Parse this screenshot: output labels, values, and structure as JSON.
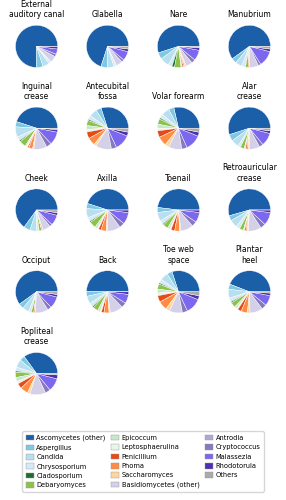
{
  "chart_data": [
    {
      "type": "pie",
      "title": "External\nauditory canal",
      "legend": "lower center",
      "categories": [
        "Ascomycetes (other)",
        "Aspergillus",
        "Candida",
        "Chrysosporium",
        "Cladosporium",
        "Debaryomyces",
        "Epicoccum",
        "Leptosphaerulina",
        "Penicillium",
        "Phoma",
        "Saccharomyces",
        "Basidiomycetes (other)",
        "Antrodia",
        "Cryptococcus",
        "Malassezia",
        "Rhodotorula",
        "Others"
      ],
      "colors": [
        "#1a5fa8",
        "#7ec8e3",
        "#b8dff0",
        "#d4eaf7",
        "#1a6e2e",
        "#8bc34a",
        "#c8e6c9",
        "#e8f5e9",
        "#e64a19",
        "#ff8c42",
        "#ffd699",
        "#d4d0e8",
        "#b0a8d4",
        "#8878c0",
        "#7b68ee",
        "#5030b0",
        "#aaaaaa"
      ],
      "values": [
        0.75,
        0.05,
        0.05,
        0.02,
        0.0,
        0.0,
        0.0,
        0.0,
        0.0,
        0.0,
        0.0,
        0.05,
        0.0,
        0.02,
        0.04,
        0.02,
        0.0
      ]
    },
    {
      "type": "pie",
      "title": "Glabella",
      "categories": [
        "Ascomycetes (other)",
        "Aspergillus",
        "Candida",
        "Chrysosporium",
        "Cladosporium",
        "Debaryomyces",
        "Epicoccum",
        "Leptosphaerulina",
        "Penicillium",
        "Phoma",
        "Saccharomyces",
        "Basidiomycetes (other)",
        "Antrodia",
        "Cryptococcus",
        "Malassezia",
        "Rhodotorula",
        "Others"
      ],
      "colors": [
        "#1a5fa8",
        "#7ec8e3",
        "#b8dff0",
        "#d4eaf7",
        "#1a6e2e",
        "#8bc34a",
        "#c8e6c9",
        "#e8f5e9",
        "#e64a19",
        "#ff8c42",
        "#ffd699",
        "#d4d0e8",
        "#b0a8d4",
        "#8878c0",
        "#7b68ee",
        "#5030b0",
        "#aaaaaa"
      ],
      "values": [
        0.7,
        0.05,
        0.05,
        0.02,
        0.0,
        0.0,
        0.0,
        0.0,
        0.0,
        0.0,
        0.0,
        0.05,
        0.0,
        0.02,
        0.07,
        0.02,
        0.02
      ]
    },
    {
      "type": "pie",
      "title": "Nare",
      "categories": [
        "Ascomycetes (other)",
        "Aspergillus",
        "Candida",
        "Chrysosporium",
        "Cladosporium",
        "Debaryomyces",
        "Epicoccum",
        "Leptosphaerulina",
        "Penicillium",
        "Phoma",
        "Saccharomyces",
        "Basidiomycetes (other)",
        "Antrodia",
        "Cryptococcus",
        "Malassezia",
        "Rhodotorula",
        "Others"
      ],
      "colors": [
        "#1a5fa8",
        "#7ec8e3",
        "#b8dff0",
        "#d4eaf7",
        "#1a6e2e",
        "#8bc34a",
        "#c8e6c9",
        "#e8f5e9",
        "#e64a19",
        "#ff8c42",
        "#ffd699",
        "#d4d0e8",
        "#b0a8d4",
        "#8878c0",
        "#7b68ee",
        "#5030b0",
        "#aaaaaa"
      ],
      "values": [
        0.55,
        0.05,
        0.07,
        0.03,
        0.02,
        0.05,
        0.01,
        0.0,
        0.01,
        0.01,
        0.01,
        0.05,
        0.0,
        0.03,
        0.08,
        0.02,
        0.01
      ]
    },
    {
      "type": "pie",
      "title": "Manubrium",
      "categories": [
        "Ascomycetes (other)",
        "Aspergillus",
        "Candida",
        "Chrysosporium",
        "Cladosporium",
        "Debaryomyces",
        "Epicoccum",
        "Leptosphaerulina",
        "Penicillium",
        "Phoma",
        "Saccharomyces",
        "Basidiomycetes (other)",
        "Antrodia",
        "Cryptococcus",
        "Malassezia",
        "Rhodotorula",
        "Others"
      ],
      "colors": [
        "#1a5fa8",
        "#7ec8e3",
        "#b8dff0",
        "#d4eaf7",
        "#1a6e2e",
        "#8bc34a",
        "#c8e6c9",
        "#e8f5e9",
        "#e64a19",
        "#ff8c42",
        "#ffd699",
        "#d4d0e8",
        "#b0a8d4",
        "#8878c0",
        "#7b68ee",
        "#5030b0",
        "#aaaaaa"
      ],
      "values": [
        0.6,
        0.04,
        0.05,
        0.03,
        0.0,
        0.02,
        0.0,
        0.0,
        0.0,
        0.01,
        0.0,
        0.07,
        0.0,
        0.02,
        0.12,
        0.02,
        0.02
      ]
    },
    {
      "type": "pie",
      "title": "Inguinal\ncrease",
      "categories": [
        "Ascomycetes (other)",
        "Aspergillus",
        "Candida",
        "Chrysosporium",
        "Cladosporium",
        "Debaryomyces",
        "Epicoccum",
        "Leptosphaerulina",
        "Penicillium",
        "Phoma",
        "Saccharomyces",
        "Basidiomycetes (other)",
        "Antrodia",
        "Cryptococcus",
        "Malassezia",
        "Rhodotorula",
        "Others"
      ],
      "colors": [
        "#1a5fa8",
        "#7ec8e3",
        "#b8dff0",
        "#d4eaf7",
        "#1a6e2e",
        "#8bc34a",
        "#c8e6c9",
        "#e8f5e9",
        "#e64a19",
        "#ff8c42",
        "#ffd699",
        "#d4d0e8",
        "#b0a8d4",
        "#8878c0",
        "#7b68ee",
        "#5030b0",
        "#aaaaaa"
      ],
      "values": [
        0.45,
        0.04,
        0.08,
        0.03,
        0.01,
        0.05,
        0.01,
        0.01,
        0.01,
        0.03,
        0.01,
        0.1,
        0.0,
        0.04,
        0.1,
        0.02,
        0.01
      ]
    },
    {
      "type": "pie",
      "title": "Antecubital\nfossa",
      "categories": [
        "Ascomycetes (other)",
        "Aspergillus",
        "Candida",
        "Chrysosporium",
        "Cladosporium",
        "Debaryomyces",
        "Epicoccum",
        "Leptosphaerulina",
        "Penicillium",
        "Phoma",
        "Saccharomyces",
        "Basidiomycetes (other)",
        "Antrodia",
        "Cryptococcus",
        "Malassezia",
        "Rhodotorula",
        "Others"
      ],
      "colors": [
        "#1a5fa8",
        "#7ec8e3",
        "#b8dff0",
        "#d4eaf7",
        "#1a6e2e",
        "#8bc34a",
        "#c8e6c9",
        "#e8f5e9",
        "#e64a19",
        "#ff8c42",
        "#ffd699",
        "#d4d0e8",
        "#b0a8d4",
        "#8878c0",
        "#7b68ee",
        "#5030b0",
        "#aaaaaa"
      ],
      "values": [
        0.3,
        0.04,
        0.06,
        0.03,
        0.01,
        0.04,
        0.03,
        0.02,
        0.05,
        0.06,
        0.02,
        0.12,
        0.0,
        0.04,
        0.12,
        0.03,
        0.03
      ]
    },
    {
      "type": "pie",
      "title": "Volar forearm",
      "categories": [
        "Ascomycetes (other)",
        "Aspergillus",
        "Candida",
        "Chrysosporium",
        "Cladosporium",
        "Debaryomyces",
        "Epicoccum",
        "Leptosphaerulina",
        "Penicillium",
        "Phoma",
        "Saccharomyces",
        "Basidiomycetes (other)",
        "Antrodia",
        "Cryptococcus",
        "Malassezia",
        "Rhodotorula",
        "Others"
      ],
      "colors": [
        "#1a5fa8",
        "#7ec8e3",
        "#b8dff0",
        "#d4eaf7",
        "#1a6e2e",
        "#8bc34a",
        "#c8e6c9",
        "#e8f5e9",
        "#e64a19",
        "#ff8c42",
        "#ffd699",
        "#d4d0e8",
        "#b0a8d4",
        "#8878c0",
        "#7b68ee",
        "#5030b0",
        "#aaaaaa"
      ],
      "values": [
        0.28,
        0.04,
        0.06,
        0.03,
        0.01,
        0.04,
        0.03,
        0.02,
        0.05,
        0.07,
        0.03,
        0.1,
        0.0,
        0.04,
        0.12,
        0.03,
        0.03
      ]
    },
    {
      "type": "pie",
      "title": "Alar\ncrease",
      "categories": [
        "Ascomycetes (other)",
        "Aspergillus",
        "Candida",
        "Chrysosporium",
        "Cladosporium",
        "Debaryomyces",
        "Epicoccum",
        "Leptosphaerulina",
        "Penicillium",
        "Phoma",
        "Saccharomyces",
        "Basidiomycetes (other)",
        "Antrodia",
        "Cryptococcus",
        "Malassezia",
        "Rhodotorula",
        "Others"
      ],
      "colors": [
        "#1a5fa8",
        "#7ec8e3",
        "#b8dff0",
        "#d4eaf7",
        "#1a6e2e",
        "#8bc34a",
        "#c8e6c9",
        "#e8f5e9",
        "#e64a19",
        "#ff8c42",
        "#ffd699",
        "#d4d0e8",
        "#b0a8d4",
        "#8878c0",
        "#7b68ee",
        "#5030b0",
        "#aaaaaa"
      ],
      "values": [
        0.55,
        0.05,
        0.06,
        0.02,
        0.0,
        0.03,
        0.01,
        0.0,
        0.01,
        0.01,
        0.01,
        0.08,
        0.0,
        0.03,
        0.1,
        0.02,
        0.02
      ]
    },
    {
      "type": "pie",
      "title": "Cheek",
      "categories": [
        "Ascomycetes (other)",
        "Aspergillus",
        "Candida",
        "Chrysosporium",
        "Cladosporium",
        "Debaryomyces",
        "Epicoccum",
        "Leptosphaerulina",
        "Penicillium",
        "Phoma",
        "Saccharomyces",
        "Basidiomycetes (other)",
        "Antrodia",
        "Cryptococcus",
        "Malassezia",
        "Rhodotorula",
        "Others"
      ],
      "colors": [
        "#1a5fa8",
        "#7ec8e3",
        "#b8dff0",
        "#d4eaf7",
        "#1a6e2e",
        "#8bc34a",
        "#c8e6c9",
        "#e8f5e9",
        "#e64a19",
        "#ff8c42",
        "#ffd699",
        "#d4d0e8",
        "#b0a8d4",
        "#8878c0",
        "#7b68ee",
        "#5030b0",
        "#aaaaaa"
      ],
      "values": [
        0.65,
        0.05,
        0.05,
        0.02,
        0.0,
        0.02,
        0.0,
        0.0,
        0.0,
        0.01,
        0.0,
        0.06,
        0.0,
        0.02,
        0.08,
        0.02,
        0.02
      ]
    },
    {
      "type": "pie",
      "title": "Axilla",
      "categories": [
        "Ascomycetes (other)",
        "Aspergillus",
        "Candida",
        "Chrysosporium",
        "Cladosporium",
        "Debaryomyces",
        "Epicoccum",
        "Leptosphaerulina",
        "Penicillium",
        "Phoma",
        "Saccharomyces",
        "Basidiomycetes (other)",
        "Antrodia",
        "Cryptococcus",
        "Malassezia",
        "Rhodotorula",
        "Others"
      ],
      "colors": [
        "#1a5fa8",
        "#7ec8e3",
        "#b8dff0",
        "#d4eaf7",
        "#1a6e2e",
        "#8bc34a",
        "#c8e6c9",
        "#e8f5e9",
        "#e64a19",
        "#ff8c42",
        "#ffd699",
        "#d4d0e8",
        "#b0a8d4",
        "#8878c0",
        "#7b68ee",
        "#5030b0",
        "#aaaaaa"
      ],
      "values": [
        0.45,
        0.04,
        0.07,
        0.03,
        0.01,
        0.05,
        0.02,
        0.01,
        0.02,
        0.04,
        0.01,
        0.1,
        0.0,
        0.04,
        0.09,
        0.02,
        0.0
      ]
    },
    {
      "type": "pie",
      "title": "Toenail",
      "categories": [
        "Ascomycetes (other)",
        "Aspergillus",
        "Candida",
        "Chrysosporium",
        "Cladosporium",
        "Debaryomyces",
        "Epicoccum",
        "Leptosphaerulina",
        "Penicillium",
        "Phoma",
        "Saccharomyces",
        "Basidiomycetes (other)",
        "Antrodia",
        "Cryptococcus",
        "Malassezia",
        "Rhodotorula",
        "Others"
      ],
      "colors": [
        "#1a5fa8",
        "#7ec8e3",
        "#b8dff0",
        "#d4eaf7",
        "#1a6e2e",
        "#8bc34a",
        "#c8e6c9",
        "#e8f5e9",
        "#e64a19",
        "#ff8c42",
        "#ffd699",
        "#d4d0e8",
        "#b0a8d4",
        "#8878c0",
        "#7b68ee",
        "#5030b0",
        "#aaaaaa"
      ],
      "values": [
        0.5,
        0.04,
        0.07,
        0.03,
        0.01,
        0.04,
        0.02,
        0.01,
        0.03,
        0.04,
        0.01,
        0.1,
        0.0,
        0.04,
        0.08,
        0.02,
        0.0
      ]
    },
    {
      "type": "pie",
      "title": "Retroauricular\ncrease",
      "categories": [
        "Ascomycetes (other)",
        "Aspergillus",
        "Candida",
        "Chrysosporium",
        "Cladosporium",
        "Debaryomyces",
        "Epicoccum",
        "Leptosphaerulina",
        "Penicillium",
        "Phoma",
        "Saccharomyces",
        "Basidiomycetes (other)",
        "Antrodia",
        "Cryptococcus",
        "Malassezia",
        "Rhodotorula",
        "Others"
      ],
      "colors": [
        "#1a5fa8",
        "#7ec8e3",
        "#b8dff0",
        "#d4eaf7",
        "#1a6e2e",
        "#8bc34a",
        "#c8e6c9",
        "#e8f5e9",
        "#e64a19",
        "#ff8c42",
        "#ffd699",
        "#d4d0e8",
        "#b0a8d4",
        "#8878c0",
        "#7b68ee",
        "#5030b0",
        "#aaaaaa"
      ],
      "values": [
        0.55,
        0.04,
        0.06,
        0.03,
        0.0,
        0.03,
        0.01,
        0.0,
        0.01,
        0.01,
        0.01,
        0.1,
        0.0,
        0.04,
        0.1,
        0.02,
        0.0
      ]
    },
    {
      "type": "pie",
      "title": "Occiput",
      "categories": [
        "Ascomycetes (other)",
        "Aspergillus",
        "Candida",
        "Chrysosporium",
        "Cladosporium",
        "Debaryomyces",
        "Epicoccum",
        "Leptosphaerulina",
        "Penicillium",
        "Phoma",
        "Saccharomyces",
        "Basidiomycetes (other)",
        "Antrodia",
        "Cryptococcus",
        "Malassezia",
        "Rhodotorula",
        "Others"
      ],
      "colors": [
        "#1a5fa8",
        "#7ec8e3",
        "#b8dff0",
        "#d4eaf7",
        "#1a6e2e",
        "#8bc34a",
        "#c8e6c9",
        "#e8f5e9",
        "#e64a19",
        "#ff8c42",
        "#ffd699",
        "#d4d0e8",
        "#b0a8d4",
        "#8878c0",
        "#7b68ee",
        "#5030b0",
        "#aaaaaa"
      ],
      "values": [
        0.6,
        0.04,
        0.05,
        0.02,
        0.0,
        0.02,
        0.0,
        0.0,
        0.0,
        0.01,
        0.0,
        0.1,
        0.0,
        0.03,
        0.09,
        0.02,
        0.02
      ]
    },
    {
      "type": "pie",
      "title": "Back",
      "categories": [
        "Ascomycetes (other)",
        "Aspergillus",
        "Candida",
        "Chrysosporium",
        "Cladosporium",
        "Debaryomyces",
        "Epicoccum",
        "Leptosphaerulina",
        "Penicillium",
        "Phoma",
        "Saccharomyces",
        "Basidiomycetes (other)",
        "Antrodia",
        "Cryptococcus",
        "Malassezia",
        "Rhodotorula",
        "Others"
      ],
      "colors": [
        "#1a5fa8",
        "#7ec8e3",
        "#b8dff0",
        "#d4eaf7",
        "#1a6e2e",
        "#8bc34a",
        "#c8e6c9",
        "#e8f5e9",
        "#e64a19",
        "#ff8c42",
        "#ffd699",
        "#d4d0e8",
        "#b0a8d4",
        "#8878c0",
        "#7b68ee",
        "#5030b0",
        "#aaaaaa"
      ],
      "values": [
        0.5,
        0.04,
        0.06,
        0.03,
        0.01,
        0.04,
        0.02,
        0.01,
        0.02,
        0.04,
        0.01,
        0.1,
        0.0,
        0.04,
        0.07,
        0.02,
        0.0
      ]
    },
    {
      "type": "pie",
      "title": "Toe web\nspace",
      "categories": [
        "Ascomycetes (other)",
        "Aspergillus",
        "Candida",
        "Chrysosporium",
        "Cladosporium",
        "Debaryomyces",
        "Epicoccum",
        "Leptosphaerulina",
        "Penicillium",
        "Phoma",
        "Saccharomyces",
        "Basidiomycetes (other)",
        "Antrodia",
        "Cryptococcus",
        "Malassezia",
        "Rhodotorula",
        "Others"
      ],
      "colors": [
        "#1a5fa8",
        "#7ec8e3",
        "#b8dff0",
        "#d4eaf7",
        "#1a6e2e",
        "#8bc34a",
        "#c8e6c9",
        "#e8f5e9",
        "#e64a19",
        "#ff8c42",
        "#ffd699",
        "#d4d0e8",
        "#b0a8d4",
        "#8878c0",
        "#7b68ee",
        "#5030b0",
        "#aaaaaa"
      ],
      "values": [
        0.3,
        0.04,
        0.06,
        0.03,
        0.01,
        0.04,
        0.03,
        0.02,
        0.05,
        0.07,
        0.03,
        0.1,
        0.0,
        0.04,
        0.12,
        0.03,
        0.03
      ]
    },
    {
      "type": "pie",
      "title": "Plantar\nheel",
      "categories": [
        "Ascomycetes (other)",
        "Aspergillus",
        "Candida",
        "Chrysosporium",
        "Cladosporium",
        "Debaryomyces",
        "Epicoccum",
        "Leptosphaerulina",
        "Penicillium",
        "Phoma",
        "Saccharomyces",
        "Basidiomycetes (other)",
        "Antrodia",
        "Cryptococcus",
        "Malassezia",
        "Rhodotorula",
        "Others"
      ],
      "colors": [
        "#1a5fa8",
        "#7ec8e3",
        "#b8dff0",
        "#d4eaf7",
        "#1a6e2e",
        "#8bc34a",
        "#c8e6c9",
        "#e8f5e9",
        "#e64a19",
        "#ff8c42",
        "#ffd699",
        "#d4d0e8",
        "#b0a8d4",
        "#8878c0",
        "#7b68ee",
        "#5030b0",
        "#aaaaaa"
      ],
      "values": [
        0.45,
        0.04,
        0.07,
        0.03,
        0.01,
        0.04,
        0.02,
        0.01,
        0.03,
        0.05,
        0.02,
        0.1,
        0.0,
        0.04,
        0.08,
        0.02,
        0.01
      ]
    },
    {
      "type": "pie",
      "title": "Popliteal\ncrease",
      "categories": [
        "Ascomycetes (other)",
        "Aspergillus",
        "Candida",
        "Chrysosporium",
        "Cladosporium",
        "Debaryomyces",
        "Epicoccum",
        "Leptosphaerulina",
        "Penicillium",
        "Phoma",
        "Saccharomyces",
        "Basidiomycetes (other)",
        "Antrodia",
        "Cryptococcus",
        "Malassezia",
        "Rhodotorula",
        "Others"
      ],
      "colors": [
        "#1a5fa8",
        "#7ec8e3",
        "#b8dff0",
        "#d4eaf7",
        "#1a6e2e",
        "#8bc34a",
        "#c8e6c9",
        "#e8f5e9",
        "#e64a19",
        "#ff8c42",
        "#ffd699",
        "#d4d0e8",
        "#b0a8d4",
        "#8878c0",
        "#7b68ee",
        "#5030b0",
        "#aaaaaa"
      ],
      "values": [
        0.35,
        0.04,
        0.06,
        0.03,
        0.01,
        0.04,
        0.03,
        0.02,
        0.04,
        0.06,
        0.02,
        0.12,
        0.0,
        0.04,
        0.1,
        0.03,
        0.01
      ]
    }
  ]
}
